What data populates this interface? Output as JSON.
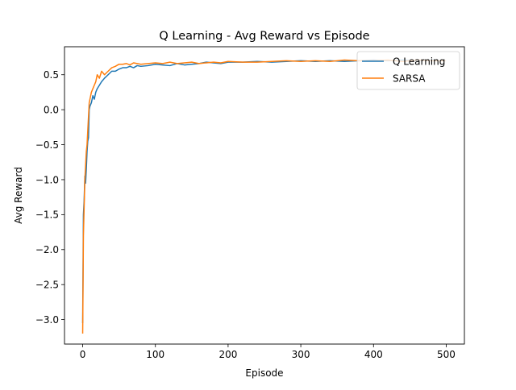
{
  "chart_data": {
    "type": "line",
    "title": "Q Learning - Avg Reward vs Episode",
    "xlabel": "Episode",
    "ylabel": "Avg Reward",
    "xlim": [
      -25,
      525
    ],
    "ylim": [
      -3.35,
      0.9
    ],
    "x_ticks": [
      0,
      100,
      200,
      300,
      400,
      500
    ],
    "y_ticks": [
      -3.0,
      -2.5,
      -2.0,
      -1.5,
      -1.0,
      -0.5,
      0.0,
      0.5
    ],
    "x_tick_labels": [
      "0",
      "100",
      "200",
      "300",
      "400",
      "500"
    ],
    "y_tick_labels": [
      "−3.0",
      "−2.5",
      "−2.0",
      "−1.5",
      "−1.0",
      "−0.5",
      "0.0",
      "0.5"
    ],
    "grid": false,
    "legend": {
      "position": "top-right"
    },
    "series": [
      {
        "name": "Q Learning",
        "color": "#1f77b4",
        "x": [
          0,
          1,
          2,
          3,
          4,
          5,
          6,
          7,
          8,
          9,
          10,
          12,
          14,
          16,
          18,
          20,
          23,
          26,
          30,
          35,
          40,
          45,
          50,
          55,
          60,
          65,
          70,
          75,
          80,
          90,
          100,
          110,
          120,
          130,
          140,
          150,
          160,
          170,
          180,
          190,
          200,
          220,
          240,
          260,
          280,
          300,
          320,
          340,
          360,
          380,
          400,
          420,
          440,
          460,
          480,
          499
        ],
        "y": [
          -3.05,
          -1.5,
          -1.3,
          -0.95,
          -1.05,
          -0.85,
          -0.6,
          -0.45,
          -0.4,
          0.0,
          0.05,
          0.1,
          0.2,
          0.15,
          0.25,
          0.3,
          0.35,
          0.4,
          0.45,
          0.5,
          0.55,
          0.55,
          0.58,
          0.6,
          0.6,
          0.62,
          0.6,
          0.63,
          0.62,
          0.63,
          0.65,
          0.64,
          0.63,
          0.66,
          0.64,
          0.65,
          0.66,
          0.68,
          0.67,
          0.66,
          0.68,
          0.68,
          0.69,
          0.68,
          0.69,
          0.7,
          0.69,
          0.7,
          0.69,
          0.7,
          0.71,
          0.7,
          0.71,
          0.7,
          0.71,
          0.7
        ]
      },
      {
        "name": "SARSA",
        "color": "#ff7f0e",
        "x": [
          0,
          1,
          2,
          3,
          4,
          5,
          6,
          7,
          8,
          9,
          10,
          12,
          14,
          16,
          18,
          20,
          23,
          26,
          30,
          35,
          40,
          45,
          50,
          55,
          60,
          65,
          70,
          75,
          80,
          90,
          100,
          110,
          120,
          130,
          140,
          150,
          160,
          170,
          180,
          190,
          200,
          220,
          240,
          260,
          280,
          300,
          320,
          340,
          360,
          380,
          400,
          420,
          440,
          460,
          480,
          499
        ],
        "y": [
          -3.2,
          -1.8,
          -1.4,
          -1.0,
          -0.8,
          -0.6,
          -0.5,
          -0.3,
          -0.1,
          0.1,
          0.15,
          0.25,
          0.3,
          0.35,
          0.4,
          0.5,
          0.45,
          0.55,
          0.5,
          0.55,
          0.6,
          0.62,
          0.65,
          0.65,
          0.66,
          0.64,
          0.67,
          0.66,
          0.65,
          0.66,
          0.67,
          0.66,
          0.68,
          0.66,
          0.67,
          0.68,
          0.66,
          0.67,
          0.68,
          0.67,
          0.69,
          0.68,
          0.68,
          0.69,
          0.7,
          0.69,
          0.7,
          0.69,
          0.71,
          0.7,
          0.7,
          0.71,
          0.69,
          0.71,
          0.7,
          0.7
        ]
      }
    ]
  }
}
